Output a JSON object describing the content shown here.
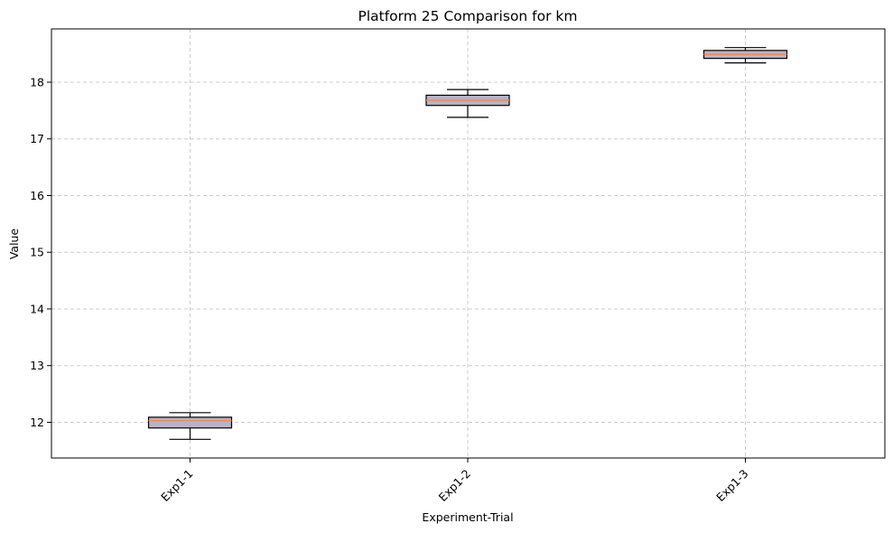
{
  "chart_data": {
    "type": "boxplot",
    "title": "Platform 25 Comparison for km",
    "xlabel": "Experiment-Trial",
    "ylabel": "Value",
    "categories": [
      "Exp1-1",
      "Exp1-2",
      "Exp1-3"
    ],
    "boxes": [
      {
        "label": "Exp1-1",
        "whisker_low": 11.7,
        "q1": 11.9,
        "median": 12.03,
        "q3": 12.09,
        "whisker_high": 12.17
      },
      {
        "label": "Exp1-2",
        "whisker_low": 17.38,
        "q1": 17.59,
        "median": 17.68,
        "q3": 17.77,
        "whisker_high": 17.87
      },
      {
        "label": "Exp1-3",
        "whisker_low": 18.34,
        "q1": 18.42,
        "median": 18.49,
        "q3": 18.56,
        "whisker_high": 18.61
      }
    ],
    "yticks": [
      12,
      13,
      14,
      15,
      16,
      17,
      18
    ],
    "ylim": [
      11.37,
      18.94
    ],
    "grid": true,
    "x_tick_rotation_deg": 45,
    "colors": {
      "box_fill": "#b8b2c8",
      "box_edge": "#000000",
      "median": "#f08c54",
      "grid": "#cccccc",
      "axes": "#000000"
    }
  }
}
